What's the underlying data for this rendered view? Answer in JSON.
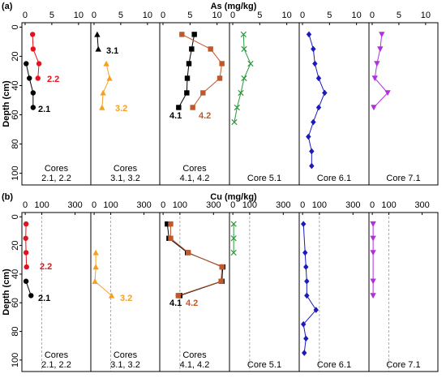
{
  "chart_data": [
    {
      "type": "line",
      "panel_letter": "(a)",
      "title": "As (mg/kg)",
      "ylabel": "Depth (cm)",
      "ylim": [
        -3,
        108
      ],
      "yticks": [
        0,
        20,
        40,
        60,
        80,
        100
      ],
      "xlim": [
        -0.6,
        12.3
      ],
      "xticks": [
        0,
        5,
        10
      ],
      "panels": [
        {
          "label": [
            "Cores",
            "2.1, 2.2"
          ],
          "series": [
            {
              "name": "2.2",
              "color": "#e0141e",
              "marker": "circle",
              "x": [
                1.4,
                1.5,
                2.6,
                2.4
              ],
              "y": [
                5,
                15,
                25,
                35
              ]
            },
            {
              "name": "2.1",
              "color": "#000000",
              "marker": "circle",
              "x": [
                0.2,
                0.8,
                1.5,
                1.5
              ],
              "y": [
                25,
                35,
                45,
                55
              ]
            }
          ]
        },
        {
          "label": [
            "Cores",
            "3.1, 3.2"
          ],
          "series": [
            {
              "name": "3.1",
              "color": "#000000",
              "marker": "triangle-up",
              "x": [
                0.6,
                0.8
              ],
              "y": [
                5,
                15
              ]
            },
            {
              "name": "3.2",
              "color": "#f5a020",
              "marker": "triangle-up",
              "x": [
                2.3,
                2.9,
                1.7,
                1.5
              ],
              "y": [
                25,
                35,
                45,
                55
              ]
            }
          ]
        },
        {
          "label": [
            "Cores",
            "4.1, 4.2"
          ],
          "series": [
            {
              "name": "4.1",
              "color": "#000000",
              "marker": "square",
              "x": [
                5.8,
                5.3,
                4.8,
                4.5,
                4.4,
                2.9
              ],
              "y": [
                5,
                15,
                25,
                35,
                45,
                55
              ]
            },
            {
              "name": "4.2",
              "color": "#c0582a",
              "marker": "square",
              "x": [
                3.5,
                8.8,
                10.9,
                10.5,
                7.4,
                5.5
              ],
              "y": [
                5,
                15,
                25,
                35,
                45,
                55
              ]
            }
          ]
        },
        {
          "label": [
            "Core 5.1"
          ],
          "series": [
            {
              "color": "#2a9a3a",
              "marker": "x",
              "x": [
                2.0,
                2.1,
                3.3,
                2.1,
                1.5,
                0.8,
                0.3
              ],
              "y": [
                5,
                15,
                25,
                35,
                45,
                55,
                65
              ]
            }
          ]
        },
        {
          "label": [
            "Core 6.1"
          ],
          "series": [
            {
              "color": "#1a1ac0",
              "marker": "diamond",
              "x": [
                1.2,
                2.0,
                2.3,
                3.0,
                4.1,
                3.0,
                2.0,
                1.1,
                1.7,
                1.7
              ],
              "y": [
                5,
                15,
                25,
                35,
                45,
                55,
                65,
                75,
                85,
                95
              ]
            }
          ]
        },
        {
          "label": [
            "Core 7.1"
          ],
          "series": [
            {
              "color": "#b030e0",
              "marker": "triangle-down",
              "x": [
                1.8,
                1.5,
                0.9,
                0.5,
                2.9,
                0.3
              ],
              "y": [
                5,
                15,
                25,
                35,
                45,
                55
              ]
            }
          ]
        }
      ]
    },
    {
      "type": "line",
      "panel_letter": "(b)",
      "title": "Cu (mg/kg)",
      "ylabel": "Depth (cm)",
      "ylim": [
        -3,
        108
      ],
      "yticks": [
        0,
        20,
        40,
        60,
        80,
        100
      ],
      "xlim": [
        -20,
        395
      ],
      "xticks": [
        0,
        100,
        300
      ],
      "reference_line": 100,
      "panels": [
        {
          "label": [
            "Cores",
            "2.1, 2.2"
          ],
          "series": [
            {
              "name": "2.2",
              "color": "#e0141e",
              "marker": "circle",
              "x": [
                5,
                3,
                5,
                8
              ],
              "y": [
                5,
                15,
                25,
                35
              ]
            },
            {
              "name": "2.1",
              "color": "#000000",
              "marker": "circle",
              "x": [
                5,
                35
              ],
              "y": [
                45,
                55
              ]
            }
          ]
        },
        {
          "label": [
            "Cores",
            "3.1, 3.2"
          ],
          "series": [
            {
              "name": "3.2",
              "color": "#f5a020",
              "marker": "triangle-up",
              "x": [
                10,
                10,
                5,
                105
              ],
              "y": [
                25,
                35,
                45,
                55
              ]
            }
          ]
        },
        {
          "label": [
            "Cores",
            "4.1, 4.2"
          ],
          "series": [
            {
              "name": "4.1",
              "color": "#000000",
              "marker": "square",
              "x": [
                25,
                35,
                145,
                355,
                350,
                100
              ],
              "y": [
                5,
                15,
                25,
                35,
                45,
                55
              ]
            },
            {
              "name": "4.2",
              "color": "#c0582a",
              "marker": "square",
              "x": [
                45,
                45,
                150,
                350,
                345,
                90
              ],
              "y": [
                5,
                15,
                25,
                35,
                45,
                55
              ]
            }
          ]
        },
        {
          "label": [
            "Core 5.1"
          ],
          "series": [
            {
              "color": "#2a9a3a",
              "marker": "x",
              "x": [
                5,
                5,
                5
              ],
              "y": [
                5,
                15,
                25
              ]
            }
          ]
        },
        {
          "label": [
            "Core 6.1"
          ],
          "series": [
            {
              "color": "#1a1ac0",
              "marker": "diamond",
              "x": [
                5,
                15,
                20,
                25,
                25,
                80,
                5,
                20,
                10
              ],
              "y": [
                5,
                25,
                35,
                45,
                55,
                65,
                75,
                85,
                95
              ]
            }
          ]
        },
        {
          "label": [
            "Core 7.1"
          ],
          "series": [
            {
              "color": "#b030e0",
              "marker": "triangle-down",
              "x": [
                5,
                5,
                5,
                5,
                5
              ],
              "y": [
                5,
                15,
                25,
                45,
                55
              ]
            }
          ]
        }
      ]
    }
  ]
}
